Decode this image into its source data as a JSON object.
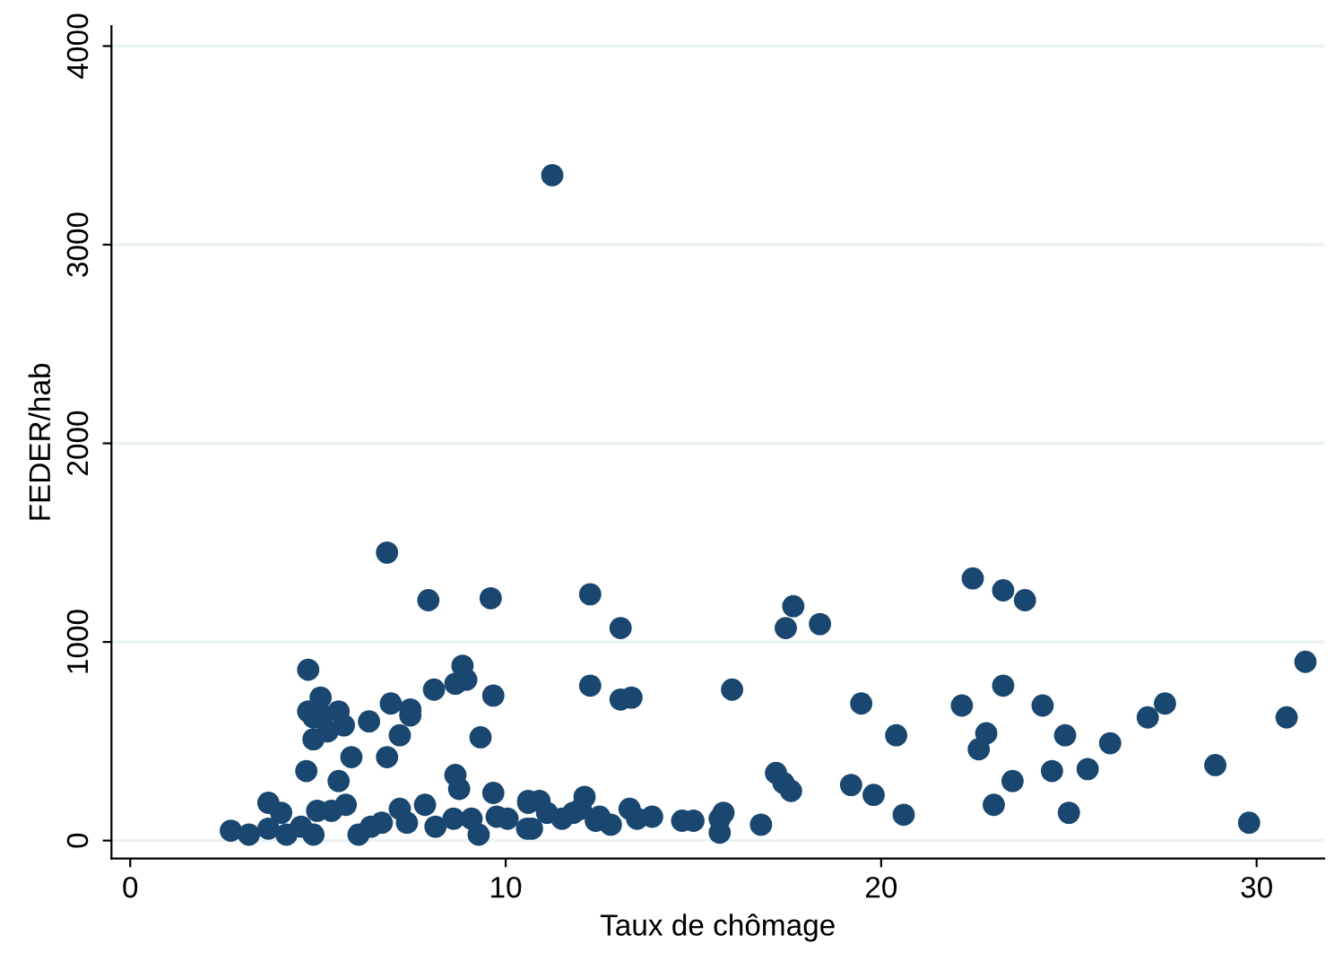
{
  "chart_data": {
    "type": "scatter",
    "xlabel": "Taux de chômage",
    "ylabel": "FEDER/hab",
    "xlim": [
      -0.5,
      31.8
    ],
    "ylim": [
      -90,
      4100
    ],
    "xticks": [
      0,
      10,
      20,
      30
    ],
    "yticks": [
      0,
      1000,
      2000,
      3000,
      4000
    ],
    "grid": "y",
    "marker": "circle",
    "series": [
      {
        "color": "#1a476f",
        "x": [
          11.24,
          6.84,
          7.94,
          9.6,
          12.25,
          13.06,
          17.46,
          17.66,
          18.37,
          12.25,
          13.06,
          13.35,
          16.03,
          19.47,
          19.8,
          19.2,
          17.2,
          17.4,
          17.6,
          10.6,
          10.9,
          10.7,
          11.1,
          11.5,
          11.8,
          12.0,
          12.1,
          12.4,
          12.5,
          12.8,
          13.3,
          13.5,
          13.9,
          14.7,
          15.0,
          15.7,
          15.7,
          15.8,
          16.8,
          22.44,
          23.25,
          23.83,
          22.15,
          23.25,
          22.8,
          22.6,
          24.3,
          24.9,
          26.1,
          27.1,
          27.56,
          30.8,
          31.3,
          28.9,
          29.8,
          25.5,
          24.55,
          23.5,
          23.0,
          25.0,
          20.6,
          20.4,
          4.74,
          5.07,
          4.74,
          4.88,
          5.12,
          5.55,
          5.69,
          5.26,
          4.88,
          6.36,
          6.94,
          7.46,
          7.46,
          7.18,
          8.09,
          8.66,
          8.85,
          8.95,
          9.67,
          9.33,
          5.89,
          6.84,
          4.69,
          5.55,
          8.66,
          8.76,
          9.67,
          10.6,
          3.68,
          4.02,
          4.98,
          5.36,
          5.74,
          2.68,
          3.16,
          3.68,
          4.16,
          4.55,
          4.88,
          6.08,
          6.41,
          6.7,
          7.18,
          7.85,
          7.37,
          8.13,
          8.61,
          9.28,
          9.09,
          9.76,
          10.05,
          10.57
        ],
        "values": [
          3350,
          1450,
          1210,
          1220,
          1240,
          1070,
          1070,
          1180,
          1090,
          780,
          710,
          720,
          760,
          690,
          230,
          280,
          340,
          290,
          250,
          200,
          200,
          60,
          140,
          110,
          140,
          160,
          220,
          100,
          120,
          80,
          160,
          110,
          120,
          100,
          100,
          40,
          110,
          140,
          80,
          1320,
          1260,
          1210,
          680,
          780,
          540,
          460,
          680,
          530,
          490,
          620,
          690,
          620,
          900,
          380,
          90,
          360,
          350,
          300,
          180,
          140,
          130,
          530,
          860,
          720,
          650,
          620,
          630,
          650,
          580,
          550,
          510,
          600,
          690,
          660,
          630,
          530,
          760,
          790,
          880,
          810,
          730,
          520,
          420,
          420,
          350,
          300,
          330,
          260,
          240,
          190,
          190,
          140,
          150,
          150,
          180,
          50,
          30,
          60,
          30,
          70,
          30,
          30,
          70,
          90,
          160,
          180,
          90,
          70,
          110,
          30,
          110,
          120,
          110,
          60
        ]
      }
    ]
  }
}
